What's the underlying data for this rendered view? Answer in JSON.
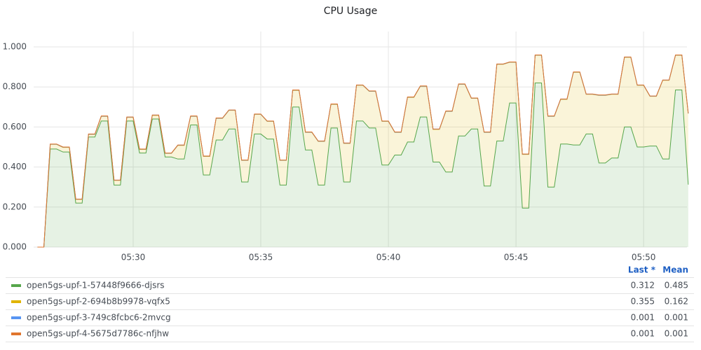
{
  "chart_data": {
    "type": "stacked_area",
    "title": "CPU Usage",
    "x": [
      26.25,
      26.5,
      26.75,
      27,
      27.25,
      27.5,
      27.75,
      28,
      28.25,
      28.5,
      28.75,
      29,
      29.25,
      29.5,
      29.75,
      30,
      30.25,
      30.5,
      30.75,
      31,
      31.25,
      31.5,
      31.75,
      32,
      32.25,
      32.5,
      32.75,
      33,
      33.25,
      33.5,
      33.75,
      34,
      34.25,
      34.5,
      34.75,
      35,
      35.25,
      35.5,
      35.75,
      36,
      36.25,
      36.5,
      36.75,
      37,
      37.25,
      37.5,
      37.75,
      38,
      38.25,
      38.5,
      38.75,
      39,
      39.25,
      39.5,
      39.75,
      40,
      40.25,
      40.5,
      40.75,
      41,
      41.25,
      41.5,
      41.75,
      42,
      42.25,
      42.5,
      42.75,
      43,
      43.25,
      43.5,
      43.75,
      44,
      44.25,
      44.5,
      44.75,
      45,
      45.25,
      45.5,
      45.75,
      46,
      46.25,
      46.5,
      46.75,
      47,
      47.25,
      47.5,
      47.75,
      48,
      48.25,
      48.5,
      48.75,
      49,
      49.25,
      49.5,
      49.75,
      50,
      50.25,
      50.5,
      50.75,
      51,
      51.25,
      51.5,
      51.75
    ],
    "xlim": [
      26.1,
      51.7
    ],
    "xticks": [
      {
        "value": 30,
        "label": "05:30"
      },
      {
        "value": 35,
        "label": "05:35"
      },
      {
        "value": 40,
        "label": "05:40"
      },
      {
        "value": 45,
        "label": "05:45"
      },
      {
        "value": 50,
        "label": "05:50"
      }
    ],
    "ylim": [
      0,
      1.077
    ],
    "yticks": [
      {
        "value": 0,
        "label": "0.000"
      },
      {
        "value": 0.2,
        "label": "0.200"
      },
      {
        "value": 0.4,
        "label": "0.400"
      },
      {
        "value": 0.6,
        "label": "0.600"
      },
      {
        "value": 0.8,
        "label": "0.800"
      },
      {
        "value": 1.0,
        "label": "1.000"
      }
    ],
    "grid": true,
    "legend_headers": [
      "Last *",
      "Mean"
    ],
    "series": [
      {
        "name": "open5gs-upf-1-57448f9666-djsrs",
        "color": "#56a64b",
        "last": 0.312,
        "mean": 0.485,
        "values": [
          0,
          0,
          0.49,
          0.49,
          0.475,
          0.475,
          0.22,
          0.22,
          0.55,
          0.55,
          0.63,
          0.63,
          0.31,
          0.31,
          0.63,
          0.63,
          0.47,
          0.47,
          0.64,
          0.64,
          0.45,
          0.45,
          0.44,
          0.44,
          0.61,
          0.61,
          0.36,
          0.36,
          0.535,
          0.535,
          0.59,
          0.59,
          0.325,
          0.325,
          0.565,
          0.565,
          0.54,
          0.54,
          0.31,
          0.31,
          0.7,
          0.7,
          0.485,
          0.485,
          0.31,
          0.31,
          0.595,
          0.595,
          0.325,
          0.325,
          0.63,
          0.63,
          0.595,
          0.595,
          0.41,
          0.41,
          0.46,
          0.46,
          0.525,
          0.525,
          0.65,
          0.65,
          0.425,
          0.425,
          0.375,
          0.375,
          0.555,
          0.555,
          0.59,
          0.59,
          0.305,
          0.305,
          0.53,
          0.53,
          0.72,
          0.72,
          0.195,
          0.195,
          0.82,
          0.82,
          0.3,
          0.3,
          0.515,
          0.515,
          0.51,
          0.51,
          0.565,
          0.565,
          0.42,
          0.42,
          0.445,
          0.445,
          0.6,
          0.6,
          0.5,
          0.5,
          0.505,
          0.505,
          0.44,
          0.44,
          0.785,
          0.785,
          0.312
        ]
      },
      {
        "name": "open5gs-upf-2-694b8b9978-vqfx5",
        "color": "#e0b400",
        "last": 0.355,
        "mean": 0.162,
        "values": [
          0,
          0,
          0.023,
          0.023,
          0.023,
          0.023,
          0.018,
          0.018,
          0.013,
          0.013,
          0.023,
          0.023,
          0.023,
          0.023,
          0.018,
          0.018,
          0.018,
          0.018,
          0.018,
          0.018,
          0.018,
          0.018,
          0.068,
          0.068,
          0.043,
          0.043,
          0.093,
          0.093,
          0.108,
          0.108,
          0.093,
          0.093,
          0.108,
          0.108,
          0.098,
          0.098,
          0.088,
          0.088,
          0.123,
          0.123,
          0.083,
          0.083,
          0.088,
          0.088,
          0.218,
          0.218,
          0.118,
          0.118,
          0.193,
          0.193,
          0.178,
          0.178,
          0.183,
          0.183,
          0.218,
          0.218,
          0.113,
          0.113,
          0.223,
          0.223,
          0.153,
          0.153,
          0.163,
          0.163,
          0.303,
          0.303,
          0.258,
          0.258,
          0.153,
          0.153,
          0.268,
          0.268,
          0.383,
          0.383,
          0.203,
          0.203,
          0.268,
          0.268,
          0.138,
          0.138,
          0.353,
          0.353,
          0.223,
          0.223,
          0.363,
          0.363,
          0.198,
          0.198,
          0.338,
          0.338,
          0.318,
          0.318,
          0.348,
          0.348,
          0.308,
          0.308,
          0.248,
          0.248,
          0.393,
          0.393,
          0.173,
          0.173,
          0.355
        ]
      },
      {
        "name": "open5gs-upf-3-749c8fcbc6-2mvcg",
        "color": "#5794f2",
        "last": 0.001,
        "mean": 0.001,
        "values": [
          0,
          0,
          0.001,
          0.001,
          0.001,
          0.001,
          0.001,
          0.001,
          0.001,
          0.001,
          0.001,
          0.001,
          0.001,
          0.001,
          0.001,
          0.001,
          0.001,
          0.001,
          0.001,
          0.001,
          0.001,
          0.001,
          0.001,
          0.001,
          0.001,
          0.001,
          0.001,
          0.001,
          0.001,
          0.001,
          0.001,
          0.001,
          0.001,
          0.001,
          0.001,
          0.001,
          0.001,
          0.001,
          0.001,
          0.001,
          0.001,
          0.001,
          0.001,
          0.001,
          0.001,
          0.001,
          0.001,
          0.001,
          0.001,
          0.001,
          0.001,
          0.001,
          0.001,
          0.001,
          0.001,
          0.001,
          0.001,
          0.001,
          0.001,
          0.001,
          0.001,
          0.001,
          0.001,
          0.001,
          0.001,
          0.001,
          0.001,
          0.001,
          0.001,
          0.001,
          0.001,
          0.001,
          0.001,
          0.001,
          0.001,
          0.001,
          0.001,
          0.001,
          0.001,
          0.001,
          0.001,
          0.001,
          0.001,
          0.001,
          0.001,
          0.001,
          0.001,
          0.001,
          0.001,
          0.001,
          0.001,
          0.001,
          0.001,
          0.001,
          0.001,
          0.001,
          0.001,
          0.001,
          0.001,
          0.001,
          0.001,
          0.001,
          0.001
        ]
      },
      {
        "name": "open5gs-upf-4-5675d7786c-nfjhw",
        "color": "#e0752d",
        "last": 0.001,
        "mean": 0.001,
        "values": [
          0,
          0,
          0.001,
          0.001,
          0.001,
          0.001,
          0.001,
          0.001,
          0.001,
          0.001,
          0.001,
          0.001,
          0.001,
          0.001,
          0.001,
          0.001,
          0.001,
          0.001,
          0.001,
          0.001,
          0.001,
          0.001,
          0.001,
          0.001,
          0.001,
          0.001,
          0.001,
          0.001,
          0.001,
          0.001,
          0.001,
          0.001,
          0.001,
          0.001,
          0.001,
          0.001,
          0.001,
          0.001,
          0.001,
          0.001,
          0.001,
          0.001,
          0.001,
          0.001,
          0.001,
          0.001,
          0.001,
          0.001,
          0.001,
          0.001,
          0.001,
          0.001,
          0.001,
          0.001,
          0.001,
          0.001,
          0.001,
          0.001,
          0.001,
          0.001,
          0.001,
          0.001,
          0.001,
          0.001,
          0.001,
          0.001,
          0.001,
          0.001,
          0.001,
          0.001,
          0.001,
          0.001,
          0.001,
          0.001,
          0.001,
          0.001,
          0.001,
          0.001,
          0.001,
          0.001,
          0.001,
          0.001,
          0.001,
          0.001,
          0.001,
          0.001,
          0.001,
          0.001,
          0.001,
          0.001,
          0.001,
          0.001,
          0.001,
          0.001,
          0.001,
          0.001,
          0.001,
          0.001,
          0.001,
          0.001,
          0.001,
          0.001,
          0.001
        ]
      }
    ]
  }
}
